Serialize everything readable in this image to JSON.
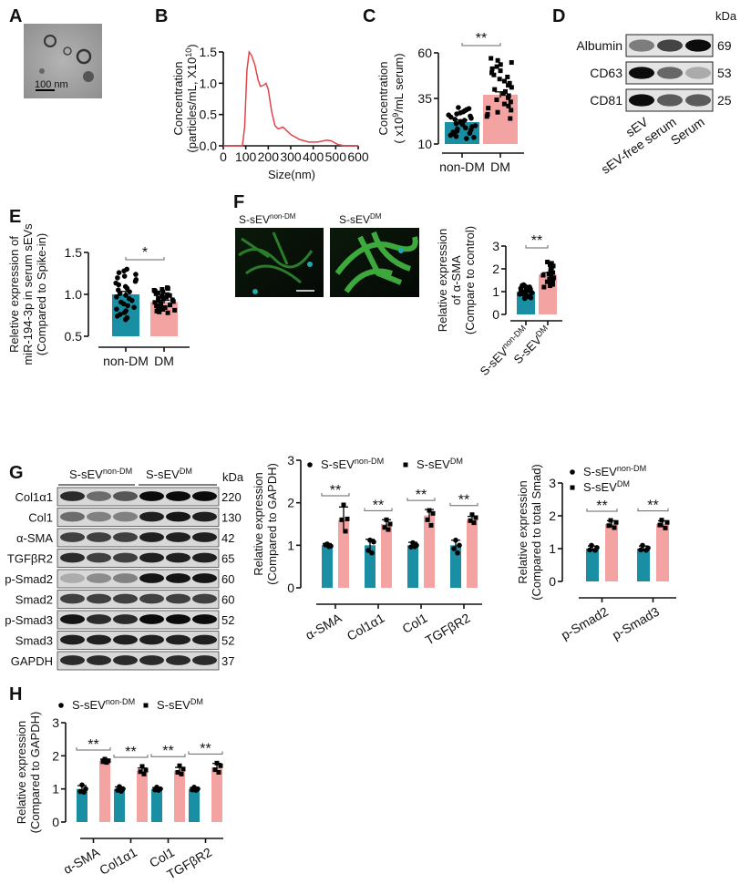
{
  "colors": {
    "non_dm": "#1a8fa3",
    "dm": "#f4a3a3",
    "line": "#e0444a",
    "sig": "#666666"
  },
  "panel_labels": [
    "A",
    "B",
    "C",
    "D",
    "E",
    "F",
    "G",
    "H"
  ],
  "panel_a": {
    "scale_bar": "100 nm"
  },
  "panel_d": {
    "kda_header": "kDa",
    "rows": [
      {
        "label": "Albumin",
        "kda": "69"
      },
      {
        "label": "CD63",
        "kda": "53"
      },
      {
        "label": "CD81",
        "kda": "25"
      }
    ],
    "lanes": [
      "sEV",
      "sEV-free serum",
      "Serum"
    ]
  },
  "panel_f": {
    "images": [
      {
        "base": "S-sEV",
        "sup": "non-DM"
      },
      {
        "base": "S-sEV",
        "sup": "DM"
      }
    ]
  },
  "panel_g_blot": {
    "groups": [
      {
        "base": "S-sEV",
        "sup": "non-DM"
      },
      {
        "base": "S-sEV",
        "sup": "DM"
      }
    ],
    "kda_header": "kDa",
    "rows": [
      {
        "label": "Col1α1",
        "kda": "220"
      },
      {
        "label": "Col1",
        "kda": "130"
      },
      {
        "label": "α-SMA",
        "kda": "42"
      },
      {
        "label": "TGFβR2",
        "kda": "65"
      },
      {
        "label": "p-Smad2",
        "kda": "60"
      },
      {
        "label": "Smad2",
        "kda": "60"
      },
      {
        "label": "p-Smad3",
        "kda": "52"
      },
      {
        "label": "Smad3",
        "kda": "52"
      },
      {
        "label": "GAPDH",
        "kda": "37"
      }
    ]
  },
  "legend": {
    "non_dm": {
      "base": "S-sEV",
      "sup": "non-DM"
    },
    "dm": {
      "base": "S-sEV",
      "sup": "DM"
    }
  },
  "chart_data": [
    {
      "id": "B",
      "type": "line",
      "xlabel": "Size(nm)",
      "ylabel": [
        "Concentration",
        "(particles/mL, X10",
        "10",
        ")"
      ],
      "xlim": [
        0,
        600
      ],
      "ylim": [
        0,
        1.5
      ],
      "xticks": [
        0,
        100,
        200,
        300,
        400,
        500,
        600
      ],
      "yticks": [
        "0.0",
        "0.5",
        "1.0",
        "1.5"
      ],
      "x": [
        0,
        85,
        95,
        105,
        115,
        125,
        140,
        155,
        165,
        180,
        190,
        200,
        215,
        230,
        245,
        265,
        280,
        300,
        340,
        380,
        420,
        460,
        480,
        510,
        540,
        600
      ],
      "y": [
        0,
        0,
        0.3,
        1.2,
        1.5,
        1.45,
        1.3,
        1.05,
        0.95,
        0.97,
        1.0,
        0.9,
        0.55,
        0.32,
        0.27,
        0.3,
        0.25,
        0.18,
        0.1,
        0.06,
        0.06,
        0.09,
        0.08,
        0.02,
        0,
        0
      ]
    },
    {
      "id": "C",
      "type": "bar",
      "ylabel": [
        "Concentration",
        "( x10",
        "9",
        "/mL serum)"
      ],
      "ylim": [
        10,
        60
      ],
      "yticks": [
        "10",
        "35",
        "60"
      ],
      "categories": [
        "non-DM",
        "DM"
      ],
      "values": [
        22,
        37
      ],
      "errors": [
        1.2,
        1.6
      ],
      "n": [
        30,
        30
      ],
      "point_range": [
        [
          13,
          30
        ],
        [
          24,
          57
        ]
      ],
      "significance": "**"
    },
    {
      "id": "D",
      "type": "western-blot"
    },
    {
      "id": "E",
      "type": "bar",
      "ylabel": [
        "Reletive expression of",
        "miR-194-3p in serum sEVs",
        "(Compared to Spike-in)"
      ],
      "ylim": [
        0.5,
        1.5
      ],
      "yticks": [
        "0.5",
        "1.0",
        "1.5"
      ],
      "categories": [
        "non-DM",
        "DM"
      ],
      "values": [
        1.0,
        0.91
      ],
      "errors": [
        0.035,
        0.02
      ],
      "n": [
        30,
        30
      ],
      "point_range": [
        [
          0.7,
          1.3
        ],
        [
          0.78,
          1.08
        ]
      ],
      "significance": "*"
    },
    {
      "id": "F",
      "type": "bar",
      "ylabel": [
        "Relative expression",
        "of α-SMA",
        "(Compare to control)"
      ],
      "ylim": [
        0,
        3
      ],
      "yticks": [
        "0",
        "1",
        "2",
        "3"
      ],
      "categories": [
        {
          "base": "S-sEV",
          "sup": "non-DM"
        },
        {
          "base": "S-sEV",
          "sup": "DM"
        }
      ],
      "values": [
        1.0,
        1.75
      ],
      "errors": [
        0.05,
        0.08
      ],
      "n": [
        20,
        20
      ],
      "point_range": [
        [
          0.7,
          1.3
        ],
        [
          1.2,
          2.3
        ]
      ],
      "significance": "**"
    },
    {
      "id": "G1",
      "type": "grouped-bar",
      "ylabel": [
        "Relative expression",
        "(Compared to GAPDH)"
      ],
      "ylim": [
        0,
        3
      ],
      "yticks": [
        "0",
        "1",
        "2",
        "3"
      ],
      "categories": [
        "α-SMA",
        "Col1α1",
        "Col1",
        "TGFβR2"
      ],
      "series": [
        {
          "name": "S-sEV non-DM",
          "values": [
            1.0,
            1.0,
            1.0,
            1.0
          ],
          "errors": [
            0.04,
            0.14,
            0.07,
            0.12
          ],
          "points": [
            [
              1.03,
              0.98,
              1.01,
              0.97
            ],
            [
              1.12,
              1.08,
              0.88,
              0.82
            ],
            [
              1.06,
              1.0,
              0.96,
              0.97
            ],
            [
              1.12,
              1.0,
              0.92,
              0.82
            ]
          ]
        },
        {
          "name": "S-sEV DM",
          "values": [
            1.6,
            1.5,
            1.7,
            1.6
          ],
          "errors": [
            0.3,
            0.1,
            0.14,
            0.08
          ],
          "points": [
            [
              1.95,
              1.62,
              1.6,
              1.33
            ],
            [
              1.6,
              1.5,
              1.42,
              1.37
            ],
            [
              1.82,
              1.75,
              1.6,
              1.47
            ],
            [
              1.72,
              1.65,
              1.58,
              1.53
            ]
          ]
        }
      ],
      "significance": [
        "**",
        "**",
        "**",
        "**"
      ]
    },
    {
      "id": "G2",
      "type": "grouped-bar",
      "ylabel": [
        "Relative expression",
        "(Compared to total Smad)"
      ],
      "ylim": [
        0,
        3
      ],
      "yticks": [
        "0",
        "1",
        "2",
        "3"
      ],
      "categories": [
        "p-Smad2",
        "p-Smad3"
      ],
      "series": [
        {
          "name": "S-sEV non-DM",
          "values": [
            1.0,
            1.0
          ],
          "errors": [
            0.08,
            0.08
          ],
          "points": [
            [
              1.1,
              1.03,
              0.96,
              0.95
            ],
            [
              1.1,
              1.02,
              0.96,
              0.95
            ]
          ]
        },
        {
          "name": "S-sEV DM",
          "values": [
            1.75,
            1.75
          ],
          "errors": [
            0.1,
            0.1
          ],
          "points": [
            [
              1.86,
              1.8,
              1.7,
              1.64
            ],
            [
              1.87,
              1.8,
              1.72,
              1.63
            ]
          ]
        }
      ],
      "significance": [
        "**",
        "**"
      ]
    },
    {
      "id": "H",
      "type": "grouped-bar",
      "ylabel": [
        "Relative expression",
        "(Compared to GAPDH)"
      ],
      "ylim": [
        0,
        3
      ],
      "yticks": [
        "0",
        "1",
        "2",
        "3"
      ],
      "categories": [
        "α-SMA",
        "Col1α1",
        "Col1",
        "TGFβR2"
      ],
      "series": [
        {
          "name": "S-sEV non-DM",
          "values": [
            1.0,
            1.0,
            1.0,
            1.0
          ],
          "errors": [
            0.1,
            0.06,
            0.04,
            0.04
          ],
          "points": [
            [
              1.12,
              1.0,
              0.92,
              0.9
            ],
            [
              1.07,
              1.0,
              0.96,
              0.93
            ],
            [
              1.05,
              1.0,
              0.97,
              0.96
            ],
            [
              1.05,
              1.0,
              0.97,
              0.96
            ]
          ]
        },
        {
          "name": "S-sEV DM",
          "values": [
            1.85,
            1.55,
            1.55,
            1.65
          ],
          "errors": [
            0.05,
            0.08,
            0.1,
            0.12
          ],
          "points": [
            [
              1.9,
              1.85,
              1.82,
              1.8
            ],
            [
              1.68,
              1.57,
              1.52,
              1.45
            ],
            [
              1.7,
              1.6,
              1.5,
              1.45
            ],
            [
              1.78,
              1.7,
              1.58,
              1.5
            ]
          ]
        }
      ],
      "significance": [
        "**",
        "**",
        "**",
        "**"
      ]
    }
  ]
}
